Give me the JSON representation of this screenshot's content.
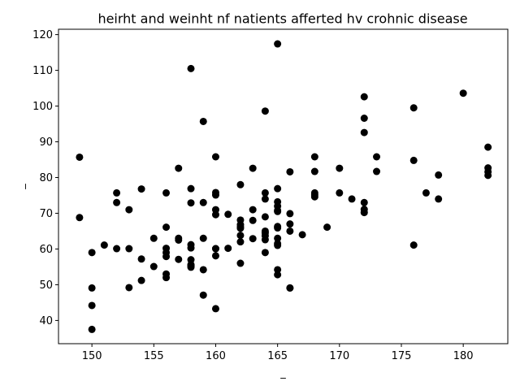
{
  "chart_data": {
    "type": "scatter",
    "title": "heirht and weinht nf natients afferted hv crohnic disease",
    "xlabel": "_",
    "ylabel": "_",
    "xlim": [
      147.3,
      183.6
    ],
    "ylim": [
      33.5,
      121.5
    ],
    "xticks": [
      150,
      155,
      160,
      165,
      170,
      175,
      180
    ],
    "yticks": [
      40,
      50,
      60,
      70,
      80,
      90,
      100,
      110,
      120
    ],
    "marker_color": "#000000",
    "grid": false,
    "x": [
      149,
      149,
      150,
      150,
      150,
      150,
      151,
      152,
      152,
      152,
      153,
      153,
      153,
      154,
      154,
      154,
      155,
      155,
      156,
      156,
      156,
      156,
      156,
      156,
      156,
      157,
      157,
      157,
      157,
      158,
      158,
      158,
      158,
      158,
      158,
      158,
      158,
      158,
      158,
      159,
      159,
      159,
      159,
      159,
      160,
      160,
      160,
      160,
      160,
      160,
      160,
      160,
      160,
      161,
      161,
      162,
      162,
      162,
      162,
      162,
      162,
      162,
      162,
      163,
      163,
      163,
      163,
      164,
      164,
      164,
      164,
      164,
      164,
      164,
      164,
      164,
      165,
      165,
      165,
      165,
      165,
      165,
      165,
      165,
      165,
      165,
      165,
      165,
      165,
      166,
      166,
      166,
      166,
      166,
      166,
      167,
      168,
      168,
      168,
      168,
      168,
      169,
      170,
      170,
      171,
      172,
      172,
      172,
      172,
      172,
      172,
      173,
      173,
      176,
      176,
      176,
      177,
      178,
      178,
      180,
      182,
      182,
      182,
      182
    ],
    "y": [
      85.7,
      68.8,
      59.0,
      49.1,
      44.2,
      37.5,
      61.1,
      75.7,
      73.0,
      60.1,
      71.0,
      60.1,
      49.2,
      76.8,
      57.2,
      51.2,
      63.0,
      55.1,
      75.7,
      66.1,
      60.2,
      59.0,
      57.9,
      53.0,
      52.0,
      82.6,
      63.0,
      62.5,
      57.1,
      110.5,
      76.9,
      72.9,
      61.2,
      60.3,
      57.0,
      55.6,
      54.9,
      55.5,
      55.2,
      95.7,
      73.0,
      63.0,
      54.2,
      47.1,
      85.8,
      75.8,
      75.1,
      71.0,
      69.6,
      60.1,
      58.1,
      43.3,
      60.1,
      69.7,
      60.2,
      78.0,
      68.1,
      66.8,
      65.8,
      63.8,
      62.0,
      56.0,
      66.2,
      82.6,
      71.0,
      68.0,
      62.9,
      98.6,
      75.7,
      74.0,
      69.0,
      65.0,
      63.7,
      62.6,
      59.0,
      64.5,
      117.4,
      76.9,
      73.2,
      72.0,
      70.5,
      65.9,
      63.0,
      61.0,
      54.2,
      52.8,
      70.8,
      61.5,
      66.3,
      81.6,
      69.9,
      67.0,
      65.0,
      49.1,
      49.1,
      64.0,
      85.8,
      81.7,
      75.7,
      74.6,
      75.1,
      66.1,
      82.6,
      75.7,
      74.0,
      102.6,
      96.6,
      92.6,
      73.0,
      71.1,
      70.2,
      85.8,
      81.7,
      99.5,
      84.8,
      61.1,
      75.7,
      80.7,
      74.0,
      103.6,
      88.5,
      82.7,
      81.6,
      80.6
    ]
  }
}
